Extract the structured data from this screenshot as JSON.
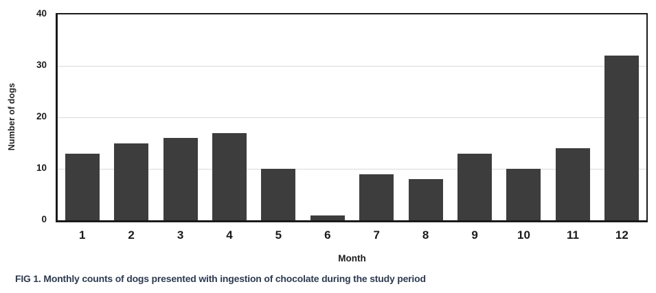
{
  "figure": {
    "caption": "FIG 1. Monthly counts of dogs presented with ingestion of chocolate during the study period"
  },
  "chart_data": {
    "type": "bar",
    "title": "",
    "categories": [
      "1",
      "2",
      "3",
      "4",
      "5",
      "6",
      "7",
      "8",
      "9",
      "10",
      "11",
      "12"
    ],
    "values": [
      13,
      15,
      16,
      17,
      10,
      1,
      9,
      8,
      13,
      10,
      14,
      32
    ],
    "xlabel": "Month",
    "ylabel": "Number of dogs",
    "ylim": [
      0,
      40
    ],
    "yticks": [
      0,
      10,
      20,
      30,
      40
    ],
    "grid": true,
    "legend": "none",
    "colors": {
      "bar": "#3d3d3d",
      "frame": "#1a1a1a",
      "gridline": "#d9d9d9",
      "tick_text": "#1a1a1a",
      "caption_text": "#2d3a50"
    }
  }
}
